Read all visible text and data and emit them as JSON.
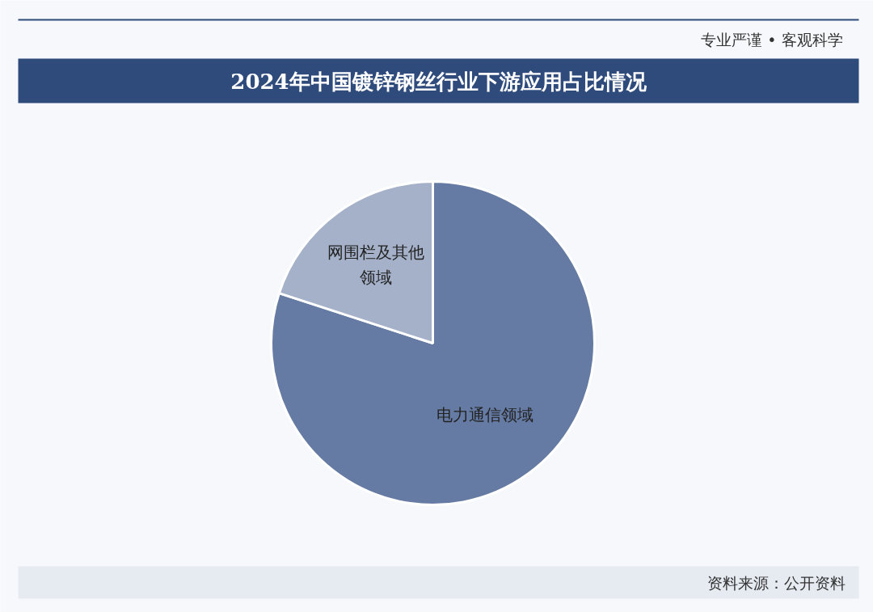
{
  "chart_data": {
    "type": "pie",
    "title": "2024年中国镀锌钢丝行业下游应用占比情况",
    "categories": [
      "电力通信领域",
      "网围栏及其他领域"
    ],
    "values": [
      80,
      20
    ],
    "colors": [
      "#657ba3",
      "#a4b1c9"
    ],
    "annotations": [
      "专业严谨 • 客观科学",
      "资料来源：公开资料"
    ]
  }
}
